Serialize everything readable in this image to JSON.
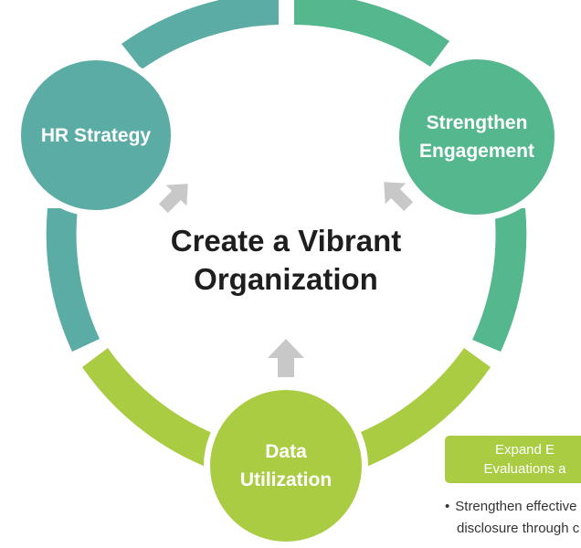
{
  "center": {
    "line1": "Create a Vibrant",
    "line2": "Organization"
  },
  "nodes": {
    "hr_strategy": {
      "line1": "HR Strategy"
    },
    "engagement": {
      "line1": "Strengthen",
      "line2": "Engagement"
    },
    "data_utilization": {
      "line1": "Data",
      "line2": "Utilization"
    }
  },
  "side_panel": {
    "box_line1": "Expand E",
    "box_line2": "Evaluations a",
    "bullet_line1": "Strengthen effective",
    "bullet_line2": "disclosure through c"
  },
  "colors": {
    "teal": "#5aaca4",
    "green": "#55b78e",
    "lime": "#a9cc42",
    "arrow": "#c8c8c8"
  }
}
